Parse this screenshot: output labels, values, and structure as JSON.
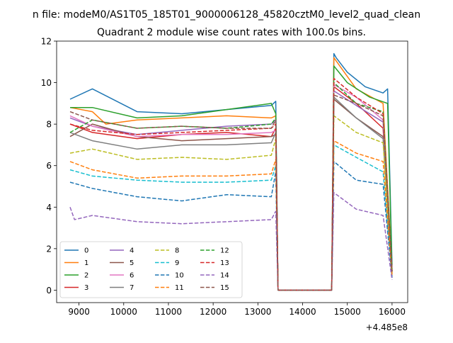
{
  "figure": {
    "suptitle": "n file: modeM0/AS1T05_185T01_9000006128_45820cztM0_level2_quad_clean",
    "offset_label": "+4.485e8"
  },
  "chart_data": {
    "type": "line",
    "title": "Quadrant 2 module wise count rates with 100.0s bins.",
    "xlabel": "",
    "ylabel": "",
    "xlim": [
      8500,
      16350
    ],
    "ylim": [
      -0.6,
      12
    ],
    "x_offset": 448500000,
    "x_ticks": [
      9000,
      10000,
      11000,
      12000,
      13000,
      14000,
      15000,
      16000
    ],
    "x_tick_labels": [
      "9000",
      "10000",
      "11000",
      "12000",
      "13000",
      "14000",
      "15000",
      "16000"
    ],
    "y_ticks": [
      0,
      2,
      4,
      6,
      8,
      10,
      12
    ],
    "y_tick_labels": [
      "0",
      "2",
      "4",
      "6",
      "8",
      "10",
      "12"
    ],
    "grid": false,
    "legend_position": "lower-left",
    "legend_columns": 4,
    "gap_start": 13450,
    "gap_end": 14650,
    "x_start": 8800,
    "x_end": 16000,
    "x_step": 100,
    "series": [
      {
        "name": "0",
        "color": "#1f77b4",
        "dash": "solid",
        "level1": 8.9,
        "level2": 10.3,
        "x": [
          8800,
          9300,
          10300,
          11300,
          12300,
          13300,
          13400,
          13450,
          14650,
          14700,
          14750,
          15000,
          15400,
          15800,
          15900,
          16000
        ],
        "y": [
          9.2,
          9.7,
          8.6,
          8.5,
          8.7,
          8.9,
          9.1,
          0.0,
          0.0,
          11.4,
          11.2,
          10.5,
          9.8,
          9.5,
          9.7,
          1.2
        ]
      },
      {
        "name": "1",
        "color": "#ff7f0e",
        "dash": "solid",
        "level1": 8.4,
        "level2": 9.7,
        "x": [
          8800,
          9300,
          9600,
          10300,
          11300,
          12300,
          13300,
          13400,
          13450,
          14650,
          14700,
          15200,
          15800,
          16000
        ],
        "y": [
          8.8,
          8.6,
          8.0,
          8.2,
          8.3,
          8.4,
          8.3,
          8.4,
          0.0,
          0.0,
          11.2,
          9.7,
          9.0,
          1.0
        ]
      },
      {
        "name": "2",
        "color": "#2ca02c",
        "dash": "solid",
        "level1": 8.6,
        "level2": 9.6,
        "x": [
          8800,
          9300,
          10300,
          11300,
          12300,
          13300,
          13400,
          13450,
          14650,
          14700,
          15000,
          15500,
          15900,
          16000
        ],
        "y": [
          8.8,
          8.8,
          8.3,
          8.4,
          8.7,
          9.0,
          8.5,
          0.0,
          0.0,
          10.8,
          10.0,
          9.3,
          9.0,
          0.9
        ]
      },
      {
        "name": "3",
        "color": "#d62728",
        "dash": "solid",
        "level1": 7.5,
        "level2": 8.5,
        "x": [
          8800,
          9300,
          10300,
          11300,
          12300,
          13300,
          13400,
          13450,
          14650,
          14700,
          15200,
          15800,
          16000
        ],
        "y": [
          8.0,
          7.6,
          7.3,
          7.5,
          7.6,
          7.4,
          7.8,
          0.0,
          0.0,
          9.8,
          9.0,
          7.8,
          0.9
        ]
      },
      {
        "name": "4",
        "color": "#9467bd",
        "dash": "solid",
        "level1": 7.8,
        "level2": 8.8,
        "x": [
          8800,
          9300,
          10300,
          11300,
          12300,
          13300,
          13400,
          13450,
          14650,
          14700,
          15200,
          15800,
          16000
        ],
        "y": [
          8.3,
          7.9,
          7.5,
          7.7,
          7.9,
          8.0,
          8.2,
          0.0,
          0.0,
          9.6,
          8.9,
          8.1,
          0.9
        ]
      },
      {
        "name": "5",
        "color": "#8c564b",
        "dash": "solid",
        "level1": 7.2,
        "level2": 8.2,
        "x": [
          8800,
          9300,
          10300,
          11300,
          12300,
          13300,
          13400,
          13450,
          14650,
          14700,
          15200,
          15800,
          16000
        ],
        "y": [
          7.4,
          8.0,
          7.4,
          7.2,
          7.3,
          7.4,
          7.5,
          0.0,
          0.0,
          9.2,
          8.3,
          7.4,
          0.8
        ]
      },
      {
        "name": "6",
        "color": "#e377c2",
        "dash": "solid",
        "level1": 7.5,
        "level2": 8.6,
        "x": [
          8800,
          9300,
          10300,
          11300,
          12300,
          13300,
          13400,
          13450,
          14650,
          14700,
          15200,
          15800,
          16000
        ],
        "y": [
          8.4,
          7.9,
          7.4,
          7.5,
          7.5,
          7.6,
          7.7,
          0.0,
          0.0,
          9.9,
          9.3,
          8.2,
          0.9
        ]
      },
      {
        "name": "7",
        "color": "#7f7f7f",
        "dash": "solid",
        "level1": 7.0,
        "level2": 8.0,
        "x": [
          8800,
          9300,
          10300,
          11300,
          12300,
          13300,
          13400,
          13450,
          14650,
          14700,
          15200,
          15800,
          16000
        ],
        "y": [
          7.6,
          7.2,
          6.8,
          7.0,
          7.0,
          7.1,
          7.6,
          0.0,
          0.0,
          9.3,
          8.3,
          7.3,
          0.8
        ]
      },
      {
        "name": "8",
        "color": "#bcbd22",
        "dash": "dash",
        "level1": 6.4,
        "level2": 7.4,
        "x": [
          8800,
          9300,
          10300,
          11300,
          12300,
          13300,
          13400,
          13450,
          14650,
          14700,
          15200,
          15800,
          16000
        ],
        "y": [
          6.6,
          6.8,
          6.3,
          6.4,
          6.3,
          6.5,
          7.3,
          0.0,
          0.0,
          8.4,
          7.6,
          7.1,
          0.8
        ]
      },
      {
        "name": "9",
        "color": "#17becf",
        "dash": "dash",
        "level1": 5.3,
        "level2": 6.2,
        "x": [
          8800,
          9300,
          10300,
          11300,
          12300,
          13300,
          13400,
          13450,
          14650,
          14700,
          15200,
          15800,
          16000
        ],
        "y": [
          5.8,
          5.5,
          5.3,
          5.2,
          5.2,
          5.3,
          6.0,
          0.0,
          0.0,
          7.0,
          6.4,
          5.7,
          0.7
        ]
      },
      {
        "name": "10",
        "color": "#1f77b4",
        "dash": "dash",
        "level1": 4.5,
        "level2": 5.4,
        "x": [
          8800,
          9300,
          10300,
          11300,
          12300,
          13300,
          13400,
          13450,
          14650,
          14700,
          15200,
          15800,
          16000
        ],
        "y": [
          5.2,
          4.9,
          4.5,
          4.3,
          4.6,
          4.5,
          5.7,
          0.0,
          0.0,
          6.2,
          5.3,
          5.1,
          0.6
        ]
      },
      {
        "name": "11",
        "color": "#ff7f0e",
        "dash": "dash",
        "level1": 5.5,
        "level2": 6.4,
        "x": [
          8800,
          9300,
          10300,
          11300,
          12300,
          13300,
          13400,
          13450,
          14650,
          14700,
          15200,
          15800,
          16000
        ],
        "y": [
          6.2,
          5.8,
          5.4,
          5.5,
          5.5,
          5.6,
          6.3,
          0.0,
          0.0,
          7.2,
          6.6,
          6.2,
          0.7
        ]
      },
      {
        "name": "12",
        "color": "#2ca02c",
        "dash": "dash",
        "level1": 7.8,
        "level2": 8.9,
        "x": [
          8800,
          9300,
          10300,
          11300,
          12300,
          13300,
          13400,
          13450,
          14650,
          14700,
          15200,
          15800,
          16000
        ],
        "y": [
          7.6,
          8.2,
          7.8,
          7.9,
          7.8,
          8.0,
          8.3,
          0.0,
          0.0,
          10.0,
          9.0,
          8.6,
          0.9
        ]
      },
      {
        "name": "13",
        "color": "#d62728",
        "dash": "dash",
        "level1": 7.6,
        "level2": 8.7,
        "x": [
          8800,
          9300,
          10300,
          11300,
          12300,
          13300,
          13400,
          13450,
          14650,
          14700,
          15200,
          15800,
          16000
        ],
        "y": [
          8.0,
          7.7,
          7.5,
          7.6,
          7.7,
          7.8,
          8.0,
          0.0,
          0.0,
          10.2,
          9.3,
          8.5,
          0.9
        ]
      },
      {
        "name": "14",
        "color": "#9467bd",
        "dash": "dash",
        "level1": 3.3,
        "level2": 4.0,
        "x": [
          8800,
          8900,
          9300,
          10300,
          11300,
          12300,
          13300,
          13400,
          13450,
          14650,
          14700,
          15200,
          15800,
          16000
        ],
        "y": [
          4.0,
          3.4,
          3.6,
          3.3,
          3.2,
          3.3,
          3.4,
          3.8,
          0.0,
          0.0,
          4.7,
          3.9,
          3.6,
          0.5
        ]
      },
      {
        "name": "15",
        "color": "#8c564b",
        "dash": "dash",
        "level1": 7.9,
        "level2": 8.9,
        "x": [
          8800,
          9300,
          10300,
          11300,
          12300,
          13300,
          13400,
          13450,
          14650,
          14700,
          15200,
          15800,
          16000
        ],
        "y": [
          8.6,
          8.2,
          7.8,
          7.9,
          7.8,
          7.8,
          8.2,
          0.0,
          0.0,
          9.4,
          9.0,
          8.4,
          0.9
        ]
      }
    ]
  }
}
